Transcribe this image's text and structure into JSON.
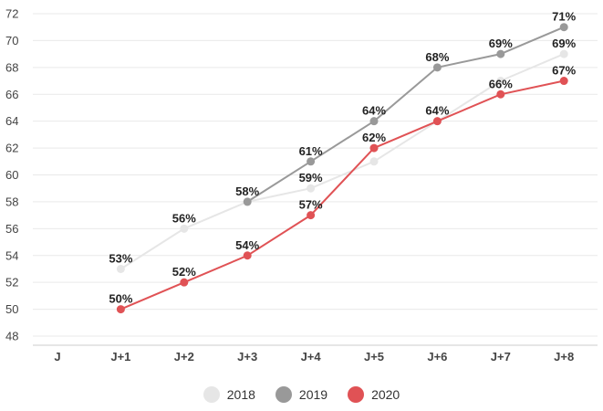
{
  "chart_data": {
    "type": "line",
    "x": [
      "J",
      "J+1",
      "J+2",
      "J+3",
      "J+4",
      "J+5",
      "J+6",
      "J+7",
      "J+8"
    ],
    "ylim": [
      48,
      72
    ],
    "yticks": [
      48,
      50,
      52,
      54,
      56,
      58,
      60,
      62,
      64,
      66,
      68,
      70,
      72
    ],
    "grid": true,
    "legend_position": "bottom-center",
    "series": [
      {
        "name": "2018",
        "color": "#e6e6e6",
        "values": [
          null,
          53,
          56,
          58,
          59,
          61,
          64,
          67,
          69
        ],
        "labels": [
          null,
          "53%",
          "56%",
          null,
          "59%",
          null,
          null,
          null,
          "69%"
        ]
      },
      {
        "name": "2019",
        "color": "#999999",
        "values": [
          null,
          null,
          null,
          58,
          61,
          64,
          68,
          69,
          71
        ],
        "labels": [
          null,
          null,
          null,
          "58%",
          "61%",
          "64%",
          "68%",
          "69%",
          "71%"
        ]
      },
      {
        "name": "2020",
        "color": "#e05255",
        "values": [
          null,
          50,
          52,
          54,
          57,
          62,
          64,
          66,
          67
        ],
        "labels": [
          null,
          "50%",
          "52%",
          "54%",
          "57%",
          "62%",
          "64%",
          "66%",
          "67%"
        ]
      }
    ]
  }
}
